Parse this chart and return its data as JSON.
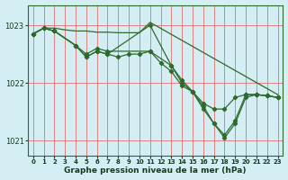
{
  "title": "Graphe pression niveau de la mer (hPa)",
  "bg_color": "#d4eef4",
  "line_color": "#2d6b2d",
  "marker_color": "#2d6b2d",
  "ylim": [
    1020.75,
    1023.35
  ],
  "xlim": [
    -0.5,
    23.5
  ],
  "yticks": [
    1021,
    1022,
    1023
  ],
  "xticks": [
    0,
    1,
    2,
    3,
    4,
    5,
    6,
    7,
    8,
    9,
    10,
    11,
    12,
    13,
    14,
    15,
    16,
    17,
    18,
    19,
    20,
    21,
    22,
    23
  ],
  "red_grid_color": "#e08080",
  "series": [
    {
      "x": [
        0,
        1,
        2,
        3,
        4,
        5,
        6,
        7,
        8,
        9,
        10,
        11,
        23
      ],
      "y": [
        1022.85,
        1022.95,
        1022.95,
        1022.92,
        1022.9,
        1022.9,
        1022.88,
        1022.88,
        1022.87,
        1022.87,
        1022.87,
        1023.05,
        1021.8
      ],
      "has_markers": false
    },
    {
      "x": [
        0,
        1,
        2,
        4,
        5,
        6,
        7,
        11,
        13,
        14,
        15,
        16,
        17,
        18,
        19,
        20,
        21,
        22,
        23
      ],
      "y": [
        1022.85,
        1022.95,
        1022.9,
        1022.65,
        1022.5,
        1022.6,
        1022.55,
        1022.55,
        1022.3,
        1022.05,
        1021.85,
        1021.65,
        1021.55,
        1021.55,
        1021.75,
        1021.8,
        1021.8,
        1021.78,
        1021.75
      ],
      "has_markers": true
    },
    {
      "x": [
        0,
        1,
        2,
        4,
        5,
        6,
        7,
        11,
        13,
        14,
        15,
        16,
        17,
        18,
        19,
        20,
        21,
        22,
        23
      ],
      "y": [
        1022.85,
        1022.95,
        1022.9,
        1022.65,
        1022.45,
        1022.55,
        1022.5,
        1023.0,
        1022.3,
        1022.0,
        1021.85,
        1021.55,
        1021.3,
        1021.1,
        1021.35,
        1021.8,
        1021.8,
        1021.78,
        1021.75
      ],
      "has_markers": true
    },
    {
      "x": [
        0,
        1,
        2,
        4,
        5,
        6,
        7,
        8,
        9,
        10,
        11,
        12,
        13,
        14,
        15,
        16,
        17,
        18,
        19,
        20,
        21,
        22,
        23
      ],
      "y": [
        1022.85,
        1022.95,
        1022.9,
        1022.65,
        1022.45,
        1022.55,
        1022.5,
        1022.45,
        1022.5,
        1022.5,
        1022.55,
        1022.35,
        1022.2,
        1021.95,
        1021.85,
        1021.6,
        1021.3,
        1021.05,
        1021.3,
        1021.75,
        1021.8,
        1021.78,
        1021.75
      ],
      "has_markers": true
    }
  ]
}
